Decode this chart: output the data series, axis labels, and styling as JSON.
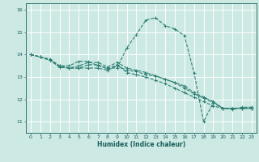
{
  "title": "",
  "xlabel": "Humidex (Indice chaleur)",
  "ylabel": "",
  "background_color": "#cce9e4",
  "grid_color": "#ffffff",
  "line_color": "#2e7e72",
  "xlim": [
    -0.5,
    23.5
  ],
  "ylim": [
    10.5,
    16.3
  ],
  "yticks": [
    11,
    12,
    13,
    14,
    15,
    16
  ],
  "xticks": [
    0,
    1,
    2,
    3,
    4,
    5,
    6,
    7,
    8,
    9,
    10,
    11,
    12,
    13,
    14,
    15,
    16,
    17,
    18,
    19,
    20,
    21,
    22,
    23
  ],
  "lines": [
    {
      "x": [
        0,
        1,
        2,
        3,
        4,
        5,
        6,
        7,
        8,
        9,
        10,
        11,
        12,
        13,
        14,
        15,
        16,
        17,
        18,
        19,
        20,
        21,
        22,
        23
      ],
      "y": [
        14.0,
        13.9,
        13.8,
        13.5,
        13.5,
        13.7,
        13.7,
        13.5,
        13.4,
        13.4,
        14.3,
        14.9,
        15.55,
        15.65,
        15.3,
        15.15,
        14.85,
        13.2,
        11.0,
        11.85,
        11.6,
        11.55,
        11.65,
        11.65
      ]
    },
    {
      "x": [
        0,
        1,
        2,
        3,
        4,
        5,
        6,
        7,
        8,
        9,
        10,
        11,
        12,
        13,
        14,
        15,
        16,
        17,
        18,
        19,
        20,
        21,
        22,
        23
      ],
      "y": [
        14.0,
        13.9,
        13.75,
        13.45,
        13.4,
        13.4,
        13.4,
        13.4,
        13.3,
        13.5,
        13.3,
        13.25,
        13.1,
        13.05,
        12.9,
        12.75,
        12.6,
        12.3,
        12.1,
        11.9,
        11.6,
        11.6,
        11.6,
        11.6
      ]
    },
    {
      "x": [
        0,
        1,
        2,
        3,
        4,
        5,
        6,
        7,
        8,
        9,
        10,
        11,
        12,
        13,
        14,
        15,
        16,
        17,
        18,
        19,
        20,
        21,
        22,
        23
      ],
      "y": [
        14.0,
        13.9,
        13.75,
        13.45,
        13.4,
        13.4,
        13.55,
        13.55,
        13.35,
        13.55,
        13.2,
        13.1,
        13.0,
        12.85,
        12.7,
        12.5,
        12.3,
        12.1,
        11.9,
        11.7,
        11.6,
        11.6,
        11.6,
        11.6
      ]
    },
    {
      "x": [
        0,
        1,
        2,
        3,
        4,
        5,
        6,
        7,
        8,
        9,
        10,
        11,
        12,
        13,
        14,
        15,
        16,
        17,
        18,
        19,
        20,
        21,
        22,
        23
      ],
      "y": [
        14.0,
        13.9,
        13.75,
        13.5,
        13.4,
        13.5,
        13.65,
        13.65,
        13.45,
        13.65,
        13.4,
        13.3,
        13.2,
        13.05,
        12.9,
        12.75,
        12.5,
        12.25,
        12.05,
        11.85,
        11.6,
        11.6,
        11.6,
        11.6
      ]
    }
  ]
}
